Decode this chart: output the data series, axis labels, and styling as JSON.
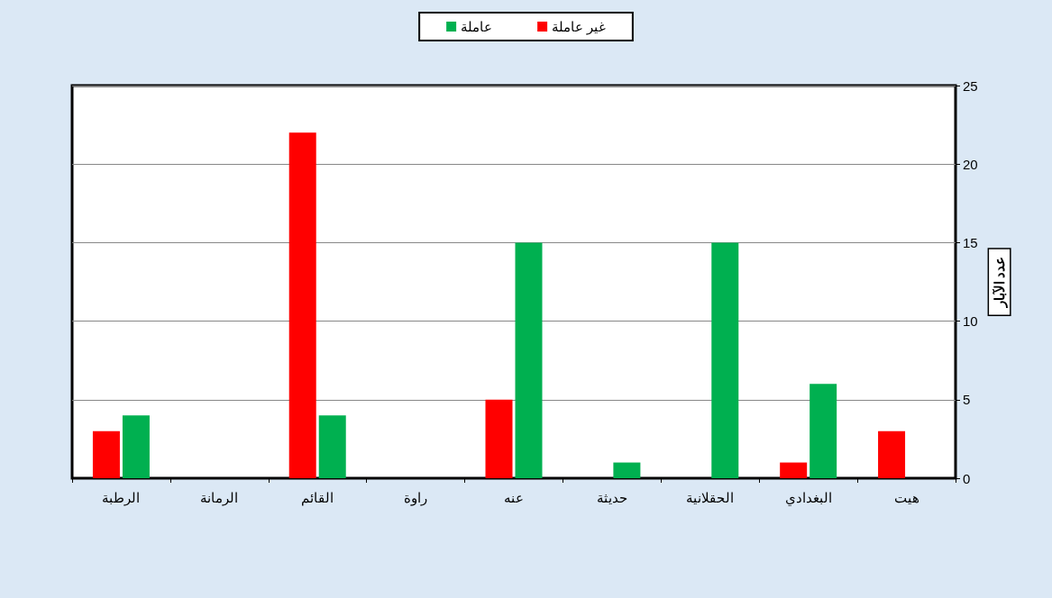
{
  "chart_data": {
    "type": "bar",
    "ylabel": "عدد الآبار",
    "categories": [
      "الرطبة",
      "الرمانة",
      "القائم",
      "راوة",
      "عنه",
      "حديثة",
      "الحقلانية",
      "البغدادي",
      "هيت"
    ],
    "series": [
      {
        "name": "غير عاملة",
        "color": "#ff0000",
        "values": [
          3,
          0,
          22,
          0,
          5,
          0,
          0,
          1,
          3
        ]
      },
      {
        "name": "عاملة",
        "color": "#00b050",
        "values": [
          4,
          0,
          4,
          0,
          15,
          1,
          15,
          6,
          0
        ]
      }
    ],
    "ylim": [
      0,
      25
    ],
    "yticks": [
      0,
      5,
      10,
      15,
      20,
      25
    ],
    "grid": "y",
    "legend": "top"
  }
}
